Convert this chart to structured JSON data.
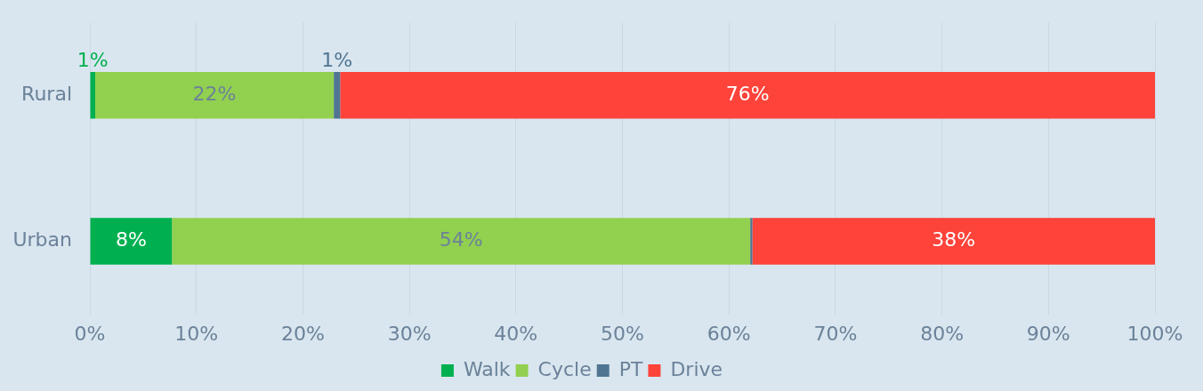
{
  "chart_data": {
    "type": "bar",
    "orientation": "horizontal",
    "stacked": true,
    "categories": [
      "Rural",
      "Urban"
    ],
    "series": [
      {
        "name": "Walk",
        "color": "#00b050",
        "values": [
          0.5,
          7.7
        ],
        "value_labels": [
          "1%",
          "8%"
        ]
      },
      {
        "name": "Cycle",
        "color": "#92d050",
        "values": [
          22.4,
          54.3
        ],
        "value_labels": [
          "22%",
          "54%"
        ]
      },
      {
        "name": "PT",
        "color": "#4f7592",
        "values": [
          0.6,
          0.2
        ],
        "value_labels": [
          "1%",
          null
        ]
      },
      {
        "name": "Drive",
        "color": "#fd433a",
        "values": [
          76.5,
          37.8
        ],
        "value_labels": [
          "76%",
          "38%"
        ]
      }
    ],
    "xlim": [
      0,
      100
    ],
    "xticks": [
      {
        "value": 0,
        "label": "0%"
      },
      {
        "value": 10,
        "label": "10%"
      },
      {
        "value": 20,
        "label": "20%"
      },
      {
        "value": 30,
        "label": "30%"
      },
      {
        "value": 40,
        "label": "40%"
      },
      {
        "value": 50,
        "label": "50%"
      },
      {
        "value": 60,
        "label": "60%"
      },
      {
        "value": 70,
        "label": "70%"
      },
      {
        "value": 80,
        "label": "80%"
      },
      {
        "value": 90,
        "label": "90%"
      },
      {
        "value": 100,
        "label": "100%"
      }
    ],
    "grid": "x",
    "legend": "bottom"
  }
}
